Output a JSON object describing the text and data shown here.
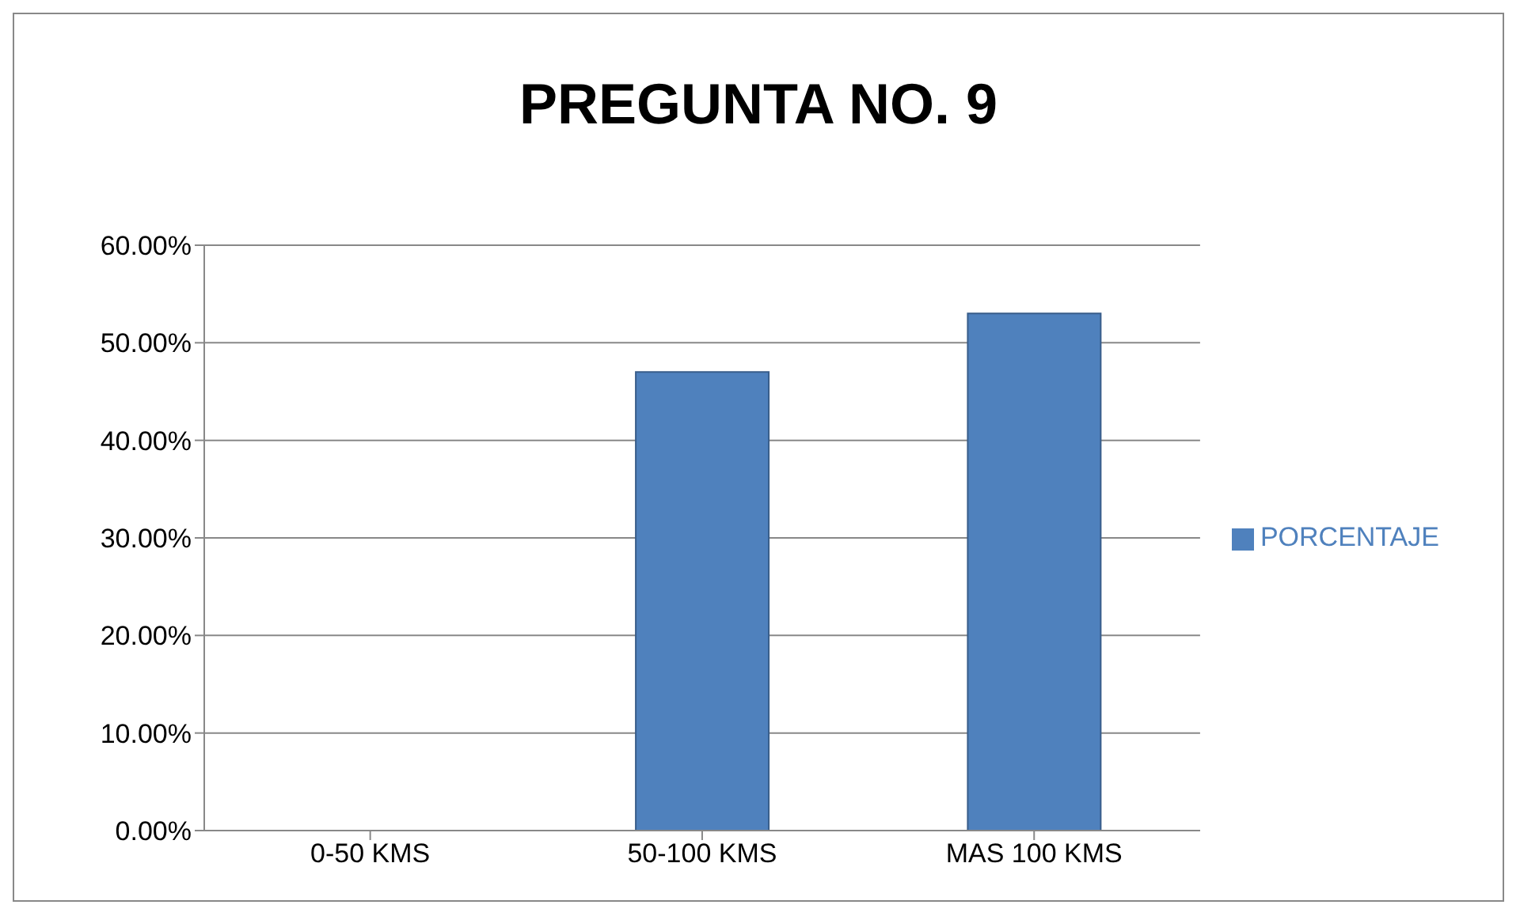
{
  "chart_data": {
    "type": "bar",
    "title": "PREGUNTA NO. 9",
    "categories": [
      "0-50 KMS",
      "50-100 KMS",
      "MAS 100 KMS"
    ],
    "series": [
      {
        "name": "PORCENTAJE",
        "color": "#4f81bd",
        "values": [
          0,
          47,
          53
        ]
      }
    ],
    "ylim": [
      0,
      60
    ],
    "yticks": [
      {
        "value": 0,
        "label": "0.00%"
      },
      {
        "value": 10,
        "label": "10.00%"
      },
      {
        "value": 20,
        "label": "20.00%"
      },
      {
        "value": 30,
        "label": "30.00%"
      },
      {
        "value": 40,
        "label": "40.00%"
      },
      {
        "value": 50,
        "label": "50.00%"
      },
      {
        "value": 60,
        "label": "60.00%"
      }
    ],
    "grid": "y",
    "legend": "right"
  }
}
